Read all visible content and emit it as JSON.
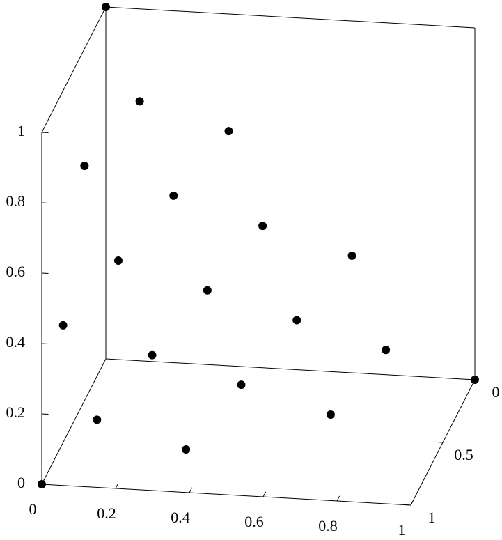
{
  "chart_data": {
    "type": "scatter3d",
    "x": [
      0,
      0.333,
      0.667,
      1,
      0,
      0.333,
      0.667,
      0,
      0.333,
      0,
      0.111,
      0.444,
      0.778,
      0.111,
      0.444,
      0.111,
      0.222,
      0.556,
      0.222
    ],
    "y": [
      0,
      0,
      0,
      0,
      0.333,
      0.333,
      0.333,
      0.667,
      0.667,
      1,
      0.111,
      0.111,
      0.111,
      0.444,
      0.444,
      0.778,
      0.222,
      0.222,
      0.556
    ],
    "z": [
      1,
      0.667,
      0.333,
      0,
      0.667,
      0.333,
      0,
      0.333,
      0,
      0,
      0.778,
      0.444,
      0.111,
      0.444,
      0.111,
      0.111,
      0.556,
      0.222,
      0.222
    ],
    "color": "#000000",
    "xlim": [
      0,
      1
    ],
    "ylim": [
      0,
      1
    ],
    "zlim": [
      0,
      1
    ],
    "xticks": [
      0,
      0.2,
      0.4,
      0.6,
      0.8,
      1
    ],
    "yticks": [
      0,
      0.5,
      1
    ],
    "zticks": [
      0,
      0.2,
      0.4,
      0.6,
      0.8,
      1
    ]
  }
}
